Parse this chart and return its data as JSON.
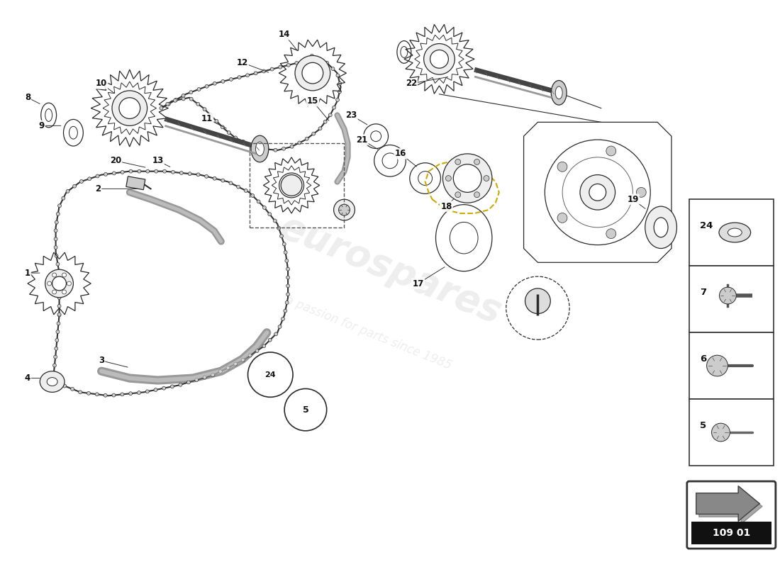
{
  "bg_color": "#ffffff",
  "watermark1": "eurospares",
  "watermark2": "a passion for parts since 1985",
  "part_number": "109 01",
  "legend": [
    "24",
    "7",
    "6",
    "5"
  ],
  "fig_w": 11.0,
  "fig_h": 8.0
}
